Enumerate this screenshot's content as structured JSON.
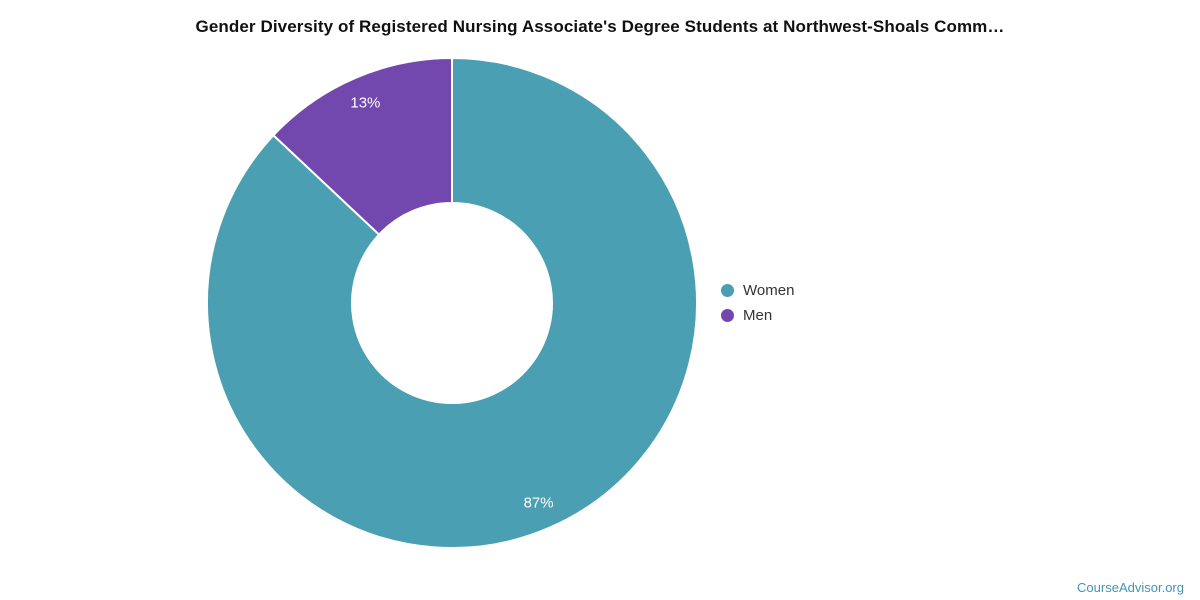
{
  "chart_data": {
    "type": "pie",
    "subtype": "donut",
    "title": "Gender Diversity of Registered Nursing Associate's Degree Students at Northwest-Shoals Comm…",
    "categories": [
      "Women",
      "Men"
    ],
    "values": [
      87,
      13
    ],
    "unit": "%",
    "colors": [
      "#4AA0B2",
      "#7348AE"
    ],
    "data_label_color": "#FFFFFF",
    "slice_border_color": "#FFFFFF",
    "legend_position": "right",
    "start_angle_deg": 0,
    "direction": "clockwise",
    "inner_radius_ratio": 0.41
  },
  "attribution": {
    "label": "CourseAdvisor.org",
    "color": "#4295B5"
  }
}
